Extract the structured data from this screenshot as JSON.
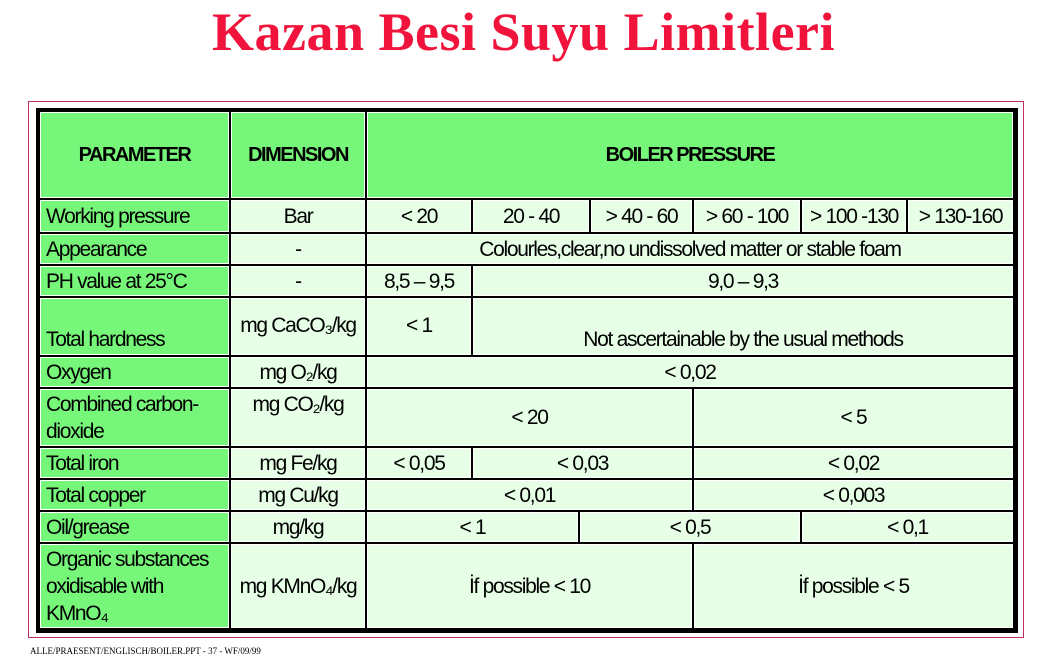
{
  "title": "Kazan Besi Suyu Limitleri",
  "headers": {
    "parameter": "PARAMETER",
    "dimension": "DIMENSION",
    "pressure": "BOILER PRESSURE"
  },
  "rows": {
    "working": {
      "name": "Working pressure",
      "dim": "Bar",
      "v": [
        "< 20",
        "20 - 40",
        "> 40 - 60",
        "> 60 - 100",
        "> 100 -130",
        "> 130-160"
      ]
    },
    "appearance": {
      "name": "Appearance",
      "dim": "-",
      "v": [
        "Colourles,clear,no undissolved matter or stable foam"
      ]
    },
    "ph": {
      "name": "PH value at 25°C",
      "dim": "-",
      "v": [
        "8,5 – 9,5",
        "9,0 – 9,3"
      ]
    },
    "hardness": {
      "name": "Total hardness",
      "dim": "mg CaCO₃/kg",
      "v": [
        "< 1",
        "Not ascertainable by the usual methods"
      ]
    },
    "oxygen": {
      "name": "Oxygen",
      "dim": "mg O₂/kg",
      "v": [
        "< 0,02"
      ]
    },
    "co2": {
      "name": "Combined carbon-dioxide",
      "dim": "mg CO₂/kg",
      "v": [
        "< 20",
        "< 5"
      ]
    },
    "iron": {
      "name": "Total iron",
      "dim": "mg Fe/kg",
      "v": [
        "< 0,05",
        "< 0,03",
        "< 0,02"
      ]
    },
    "copper": {
      "name": "Total copper",
      "dim": "mg Cu/kg",
      "v": [
        "< 0,01",
        "< 0,003"
      ]
    },
    "oil": {
      "name": "Oil/grease",
      "dim": "mg/kg",
      "v": [
        "< 1",
        "< 0,5",
        "< 0,1"
      ]
    },
    "organic": {
      "name": "Organic substances oxidisable with KMnO₄",
      "dim": "mg KMnO₄/kg",
      "v": [
        "İf possible < 10",
        "İf possible < 5"
      ]
    }
  },
  "footer": "ALLE/PRAESENT/ENGLISCH/BOILER.PPT - 37 - WF/09/99",
  "colors": {
    "title": "#f0143c",
    "header_bg": "#77f77a",
    "cell_bg": "#e6ffe6"
  }
}
